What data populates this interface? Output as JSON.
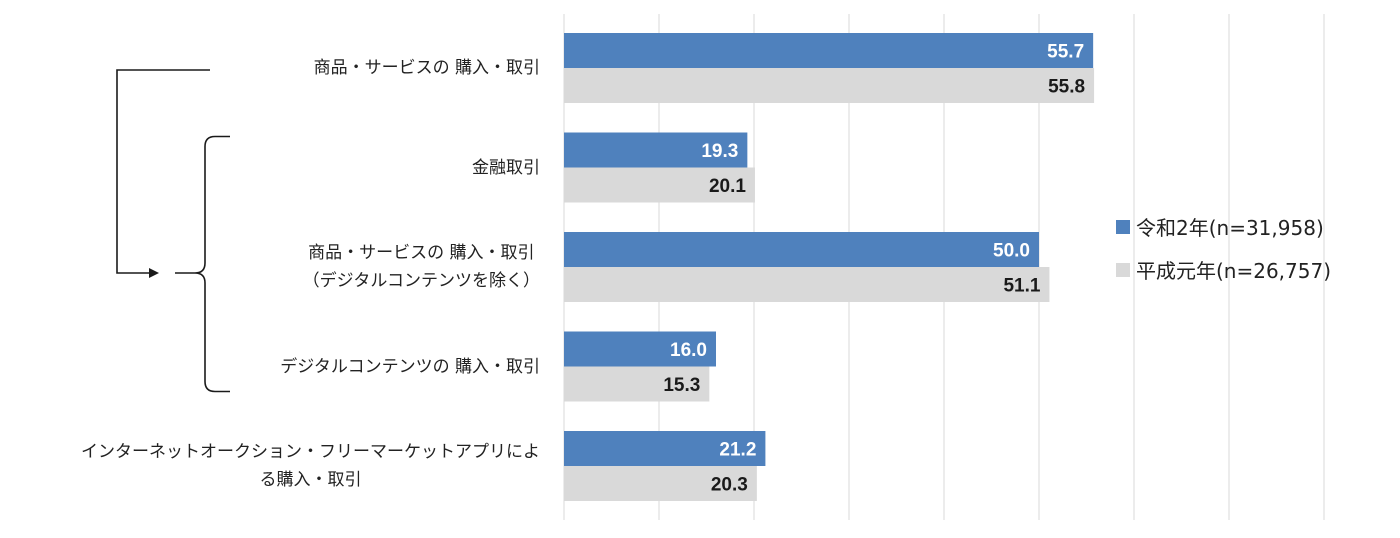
{
  "chart_data": {
    "type": "bar",
    "orientation": "horizontal",
    "categories": [
      "商品・サービスの 購入・取引",
      "金融取引",
      "商品・サービスの 購入・取引\n（デジタルコンテンツを除く）",
      "デジタルコンテンツの 購入・取引",
      "インターネットオークション・フリーマーケットアプリによ\nる購入・取引"
    ],
    "series": [
      {
        "name": "令和2年(n=31,958)",
        "color": "#4f81bd",
        "label_color": "#ffffff",
        "values": [
          55.7,
          19.3,
          50.0,
          16.0,
          21.2
        ]
      },
      {
        "name": "平成元年(n=26,757)",
        "color": "#d9d9d9",
        "label_color": "#1a1a1a",
        "values": [
          55.8,
          20.1,
          51.1,
          15.3,
          20.3
        ]
      }
    ],
    "xlim": [
      0,
      80
    ],
    "grid": true,
    "legend_position": "right",
    "bracket": {
      "from_category": 0,
      "to_categories": [
        1,
        2,
        3
      ],
      "shape": "bracket-arrow"
    },
    "title": "",
    "xlabel": "",
    "ylabel": ""
  }
}
